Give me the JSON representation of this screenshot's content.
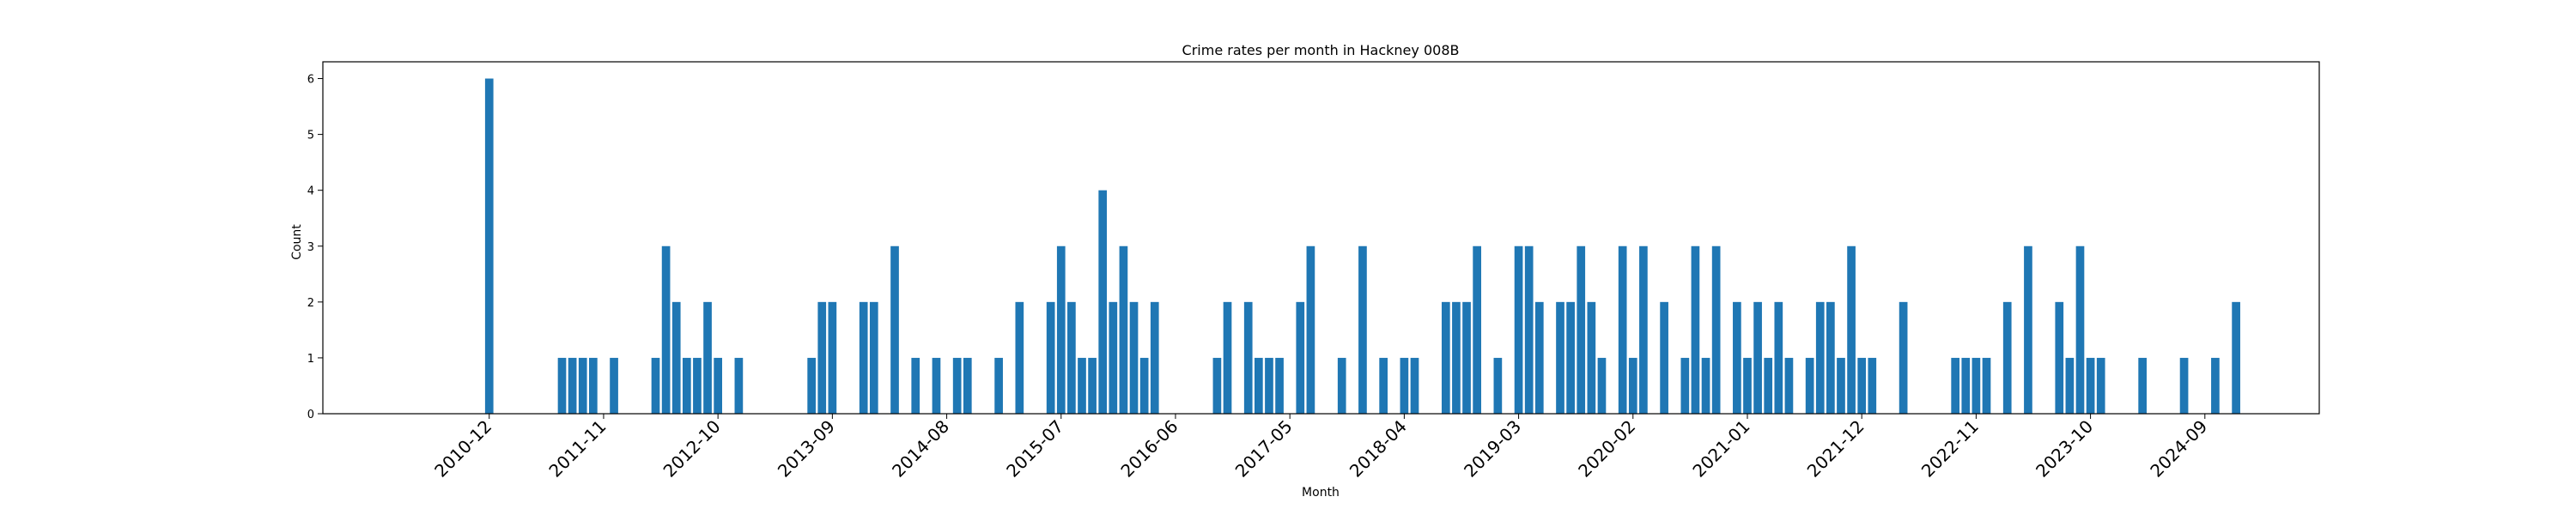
{
  "chart_data": {
    "type": "bar",
    "title": "Crime rates per month in Hackney 008B",
    "xlabel": "Month",
    "ylabel": "Count",
    "ylim": [
      0,
      6.3
    ],
    "yticks": [
      0,
      1,
      2,
      3,
      4,
      5,
      6
    ],
    "xticks": [
      "2010-12",
      "2011-11",
      "2012-10",
      "2013-09",
      "2014-08",
      "2015-07",
      "2016-06",
      "2017-05",
      "2018-04",
      "2019-03",
      "2020-02",
      "2021-01",
      "2021-12",
      "2022-11",
      "2023-10",
      "2024-09"
    ],
    "bar_color": "#1f77b4",
    "series": [
      {
        "x": [
          "2010-12",
          "2011-07",
          "2011-08",
          "2011-09",
          "2011-10",
          "2011-12",
          "2012-04",
          "2012-05",
          "2012-06",
          "2012-07",
          "2012-08",
          "2012-09",
          "2012-10",
          "2012-12",
          "2013-07",
          "2013-08",
          "2013-09",
          "2013-12",
          "2014-01",
          "2014-03",
          "2014-05",
          "2014-07",
          "2014-09",
          "2014-10",
          "2015-01",
          "2015-03",
          "2015-06",
          "2015-07",
          "2015-08",
          "2015-09",
          "2015-10",
          "2015-11",
          "2015-12",
          "2016-01",
          "2016-02",
          "2016-03",
          "2016-04",
          "2016-10",
          "2016-11",
          "2017-01",
          "2017-02",
          "2017-03",
          "2017-04",
          "2017-06",
          "2017-07",
          "2017-10",
          "2017-12",
          "2018-02",
          "2018-04",
          "2018-05",
          "2018-08",
          "2018-09",
          "2018-10",
          "2018-11",
          "2019-01",
          "2019-03",
          "2019-04",
          "2019-05",
          "2019-07",
          "2019-08",
          "2019-09",
          "2019-10",
          "2019-11",
          "2020-01",
          "2020-02",
          "2020-03",
          "2020-05",
          "2020-07",
          "2020-08",
          "2020-09",
          "2020-10",
          "2020-12",
          "2021-01",
          "2021-02",
          "2021-03",
          "2021-04",
          "2021-05",
          "2021-07",
          "2021-08",
          "2021-09",
          "2021-10",
          "2021-11",
          "2021-12",
          "2022-01",
          "2022-04",
          "2022-09",
          "2022-10",
          "2022-11",
          "2022-12",
          "2023-02",
          "2023-04",
          "2023-07",
          "2023-08",
          "2023-09",
          "2023-10",
          "2023-11",
          "2024-03",
          "2024-07",
          "2024-10",
          "2024-12"
        ],
        "values": [
          6,
          1,
          1,
          1,
          1,
          1,
          1,
          3,
          2,
          1,
          1,
          2,
          1,
          1,
          1,
          2,
          2,
          2,
          2,
          3,
          1,
          1,
          1,
          1,
          1,
          2,
          2,
          3,
          2,
          1,
          1,
          4,
          2,
          3,
          2,
          1,
          2,
          1,
          2,
          2,
          1,
          1,
          1,
          2,
          3,
          1,
          3,
          1,
          1,
          1,
          2,
          2,
          2,
          3,
          1,
          3,
          3,
          2,
          2,
          2,
          3,
          2,
          1,
          3,
          1,
          3,
          2,
          1,
          3,
          1,
          3,
          2,
          1,
          2,
          1,
          2,
          1,
          1,
          2,
          2,
          1,
          3,
          1,
          1,
          2,
          1,
          1,
          1,
          1,
          2,
          3,
          2,
          1,
          3,
          1,
          1,
          1,
          1,
          1,
          2
        ]
      }
    ]
  }
}
